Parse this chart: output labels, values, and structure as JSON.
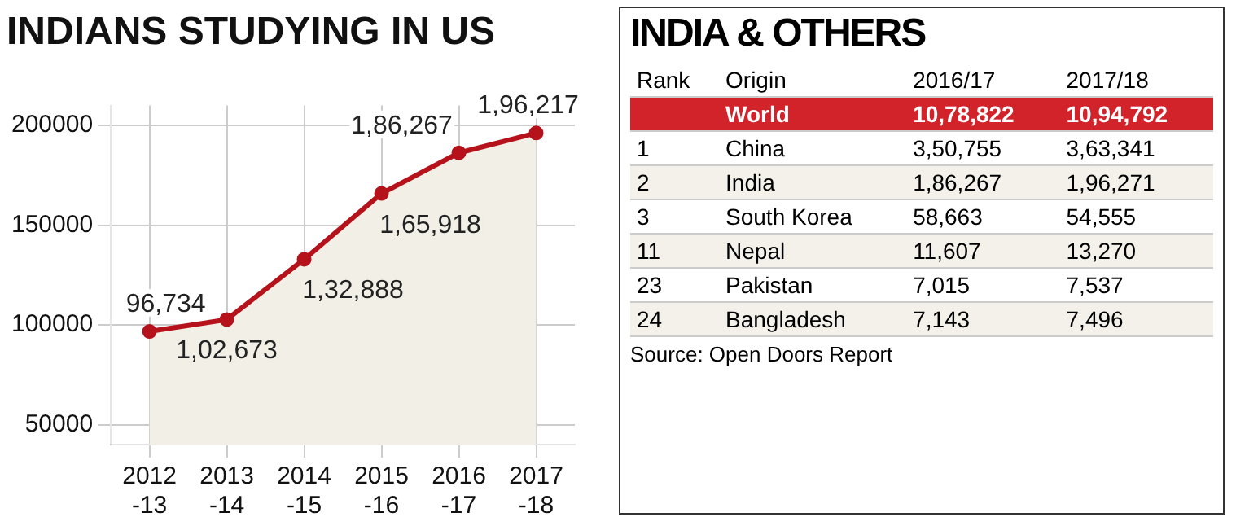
{
  "chart_data": [
    {
      "type": "area",
      "title": "INDIANS STUDYING IN US",
      "categories": [
        "2012\n-13",
        "2013\n-14",
        "2014\n-15",
        "2015\n-16",
        "2016\n-17",
        "2017\n-18"
      ],
      "series": [
        {
          "color": "#b5121b",
          "values": [
            96734,
            102673,
            132888,
            165918,
            186267,
            196217
          ],
          "value_labels": [
            "96,734",
            "1,02,673",
            "1,32,888",
            "1,65,918",
            "1,86,267",
            "1,96,217"
          ]
        }
      ],
      "ylim": [
        40000,
        210000
      ],
      "yticks": [
        50000,
        100000,
        150000,
        200000
      ],
      "grid": true,
      "marker": "circle",
      "legend": false
    },
    {
      "type": "other",
      "title": "INDIA & OTHERS",
      "annotations": [
        "Rank  Origin  2016/17  2017/18",
        "  World  10,78,822  10,94,792",
        "1  China  3,50,755  3,63,341",
        "2  India  1,86,267  1,96,271",
        "3  South Korea  58,663  54,555",
        "11  Nepal  11,607  13,270",
        "23  Pakistan  7,015  7,537",
        "24  Bangladesh  7,143  7,496",
        "Source: Open Doors Report"
      ]
    }
  ]
}
